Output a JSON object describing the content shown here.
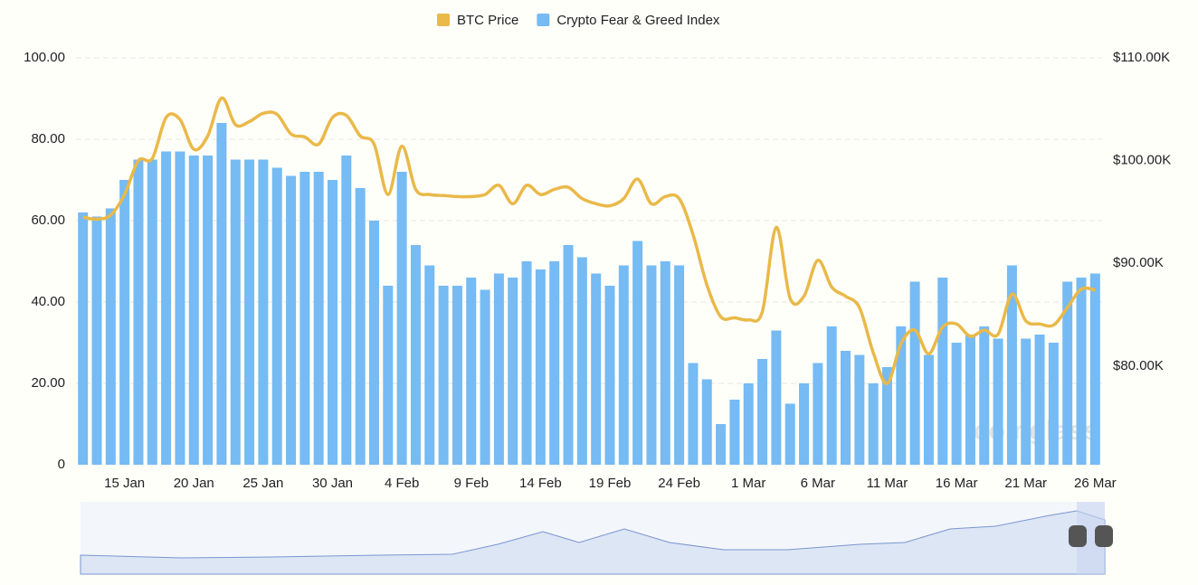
{
  "chart_data": {
    "type": "bar_line",
    "series": [
      {
        "name": "BTC Price",
        "color": "#e9b949",
        "axis": "y2",
        "type": "line",
        "values": [
          94500,
          94300,
          94700,
          96700,
          100000,
          100200,
          104200,
          104000,
          101100,
          102400,
          106100,
          103500,
          103800,
          104600,
          104500,
          102600,
          102300,
          101600,
          104200,
          104400,
          102400,
          101600,
          96700,
          101400,
          97200,
          96700,
          96600,
          96500,
          96500,
          96700,
          97600,
          95800,
          97600,
          96700,
          97200,
          97400,
          96300,
          95800,
          95600,
          96300,
          98200,
          95800,
          96500,
          96300,
          92800,
          87900,
          84800,
          84700,
          84500,
          85300,
          93500,
          86600,
          86800,
          90300,
          87700,
          86800,
          85700,
          81300,
          78300,
          82200,
          83500,
          81200,
          83800,
          84100,
          82900,
          83500,
          83100,
          87000,
          84400,
          84100,
          84000,
          85700,
          87500,
          87400
        ]
      },
      {
        "name": "Crypto Fear & Greed Index",
        "color": "#76bbf3",
        "type": "bar",
        "values": [
          62,
          61,
          63,
          70,
          75,
          75,
          77,
          77,
          76,
          76,
          84,
          75,
          75,
          75,
          73,
          71,
          72,
          72,
          70,
          76,
          68,
          60,
          44,
          72,
          54,
          49,
          44,
          44,
          46,
          43,
          47,
          46,
          50,
          48,
          50,
          54,
          51,
          47,
          44,
          49,
          55,
          49,
          50,
          49,
          25,
          21,
          10,
          16,
          20,
          26,
          33,
          15,
          20,
          25,
          34,
          28,
          27,
          20,
          24,
          34,
          45,
          27,
          46,
          30,
          32,
          34,
          31,
          49,
          31,
          32,
          30,
          45,
          46,
          47
        ]
      }
    ],
    "categories": [
      null,
      null,
      null,
      "15 Jan",
      null,
      null,
      null,
      null,
      "20 Jan",
      null,
      null,
      null,
      null,
      "25 Jan",
      null,
      null,
      null,
      null,
      "30 Jan",
      null,
      null,
      null,
      null,
      "4 Feb",
      null,
      null,
      null,
      null,
      "9 Feb",
      null,
      null,
      null,
      null,
      "14 Feb",
      null,
      null,
      null,
      null,
      "19 Feb",
      null,
      null,
      null,
      null,
      "24 Feb",
      null,
      null,
      null,
      null,
      "1 Mar",
      null,
      null,
      null,
      null,
      "6 Mar",
      null,
      null,
      null,
      null,
      "11 Mar",
      null,
      null,
      null,
      null,
      "16 Mar",
      null,
      null,
      null,
      null,
      "21 Mar",
      null,
      null,
      null,
      null,
      "26 Mar"
    ],
    "ylim": [
      0,
      100
    ],
    "yticks": [
      0,
      {
        "value": 20,
        "label": "20.00"
      },
      {
        "value": 40,
        "label": "40.00"
      },
      {
        "value": 60,
        "label": "60.00"
      },
      {
        "value": 80,
        "label": "80.00"
      },
      {
        "value": 100,
        "label": "100.00"
      }
    ],
    "y2lim": [
      70400,
      110000
    ],
    "y2ticks": [
      {
        "value": 80000,
        "label": "$80.00K"
      },
      {
        "value": 90000,
        "label": "$90.00K"
      },
      {
        "value": 100000,
        "label": "$100.00K"
      },
      {
        "value": 110000,
        "label": "$110.00K"
      }
    ],
    "grid": true,
    "legend": "top",
    "watermark": "coinglass"
  }
}
